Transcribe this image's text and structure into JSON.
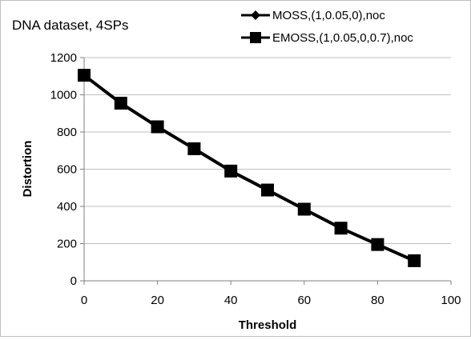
{
  "chart_data": {
    "type": "line",
    "title": "DNA dataset, 4SPs",
    "xlabel": "Threshold",
    "ylabel": "Distortion",
    "xlim": [
      0,
      100
    ],
    "ylim": [
      0,
      1200
    ],
    "x_ticks": [
      "0",
      "20",
      "40",
      "60",
      "80",
      "100"
    ],
    "y_ticks": [
      "0",
      "200",
      "400",
      "600",
      "800",
      "1000",
      "1200"
    ],
    "grid": "horizontal",
    "legend_position": "top-right",
    "x": [
      0,
      10,
      20,
      30,
      40,
      50,
      60,
      70,
      80,
      90
    ],
    "series": [
      {
        "name": "MOSS,(1,0.05,0),noc",
        "marker": "diamond",
        "color": "#000000",
        "values": [
          1105,
          955,
          828,
          710,
          590,
          488,
          385,
          283,
          195,
          108
        ]
      },
      {
        "name": "EMOSS,(1,0.05,0,0.7),noc",
        "marker": "square",
        "color": "#000000",
        "values": [
          1105,
          955,
          828,
          710,
          590,
          488,
          385,
          283,
          195,
          108
        ]
      }
    ]
  }
}
